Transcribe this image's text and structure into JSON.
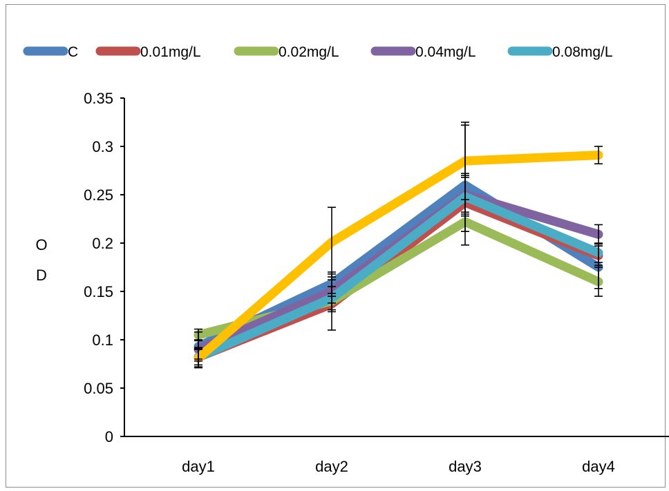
{
  "chart_data": {
    "type": "line",
    "title": "",
    "xlabel": "",
    "ylabel": "OD",
    "categories": [
      "day1",
      "day2",
      "day3",
      "day4"
    ],
    "ylim": [
      0,
      0.35
    ],
    "yticks": [
      "0",
      "0.05",
      "0.1",
      "0.15",
      "0.2",
      "0.25",
      "0.3",
      "0.35"
    ],
    "grid": false,
    "legend_position": "top",
    "series": [
      {
        "name": "C",
        "color": "#4F81BD",
        "values": [
          0.093,
          0.158,
          0.26,
          0.175
        ],
        "errors": [
          0.015,
          0.01,
          0.062,
          0.022
        ]
      },
      {
        "name": "0.01mg/L",
        "color": "#C0504D",
        "values": [
          0.082,
          0.137,
          0.242,
          0.187
        ],
        "errors": [
          0.008,
          0.008,
          0.03,
          0.01
        ]
      },
      {
        "name": "0.02mg/L",
        "color": "#9BBB59",
        "values": [
          0.105,
          0.14,
          0.222,
          0.16
        ],
        "errors": [
          0.006,
          0.03,
          0.01,
          0.015
        ]
      },
      {
        "name": "0.04mg/L",
        "color": "#8064A2",
        "values": [
          0.09,
          0.15,
          0.25,
          0.209
        ],
        "errors": [
          0.01,
          0.012,
          0.02,
          0.01
        ]
      },
      {
        "name": "0.08mg/L",
        "color": "#4BACC6",
        "values": [
          0.082,
          0.143,
          0.248,
          0.19
        ],
        "errors": [
          0.01,
          0.012,
          0.02,
          0.01
        ]
      },
      {
        "name": "",
        "color": "#FFC000",
        "values": [
          0.081,
          0.201,
          0.285,
          0.291
        ],
        "errors": [
          0.01,
          0.036,
          0.04,
          0.009
        ]
      }
    ]
  }
}
